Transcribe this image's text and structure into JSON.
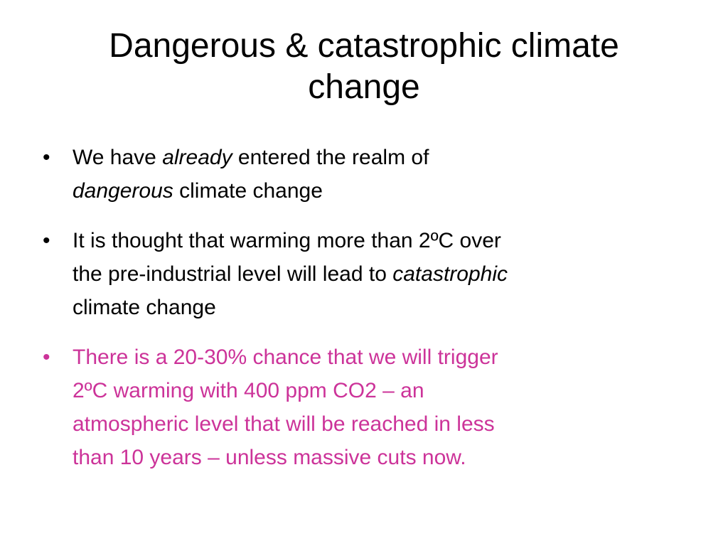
{
  "slide": {
    "title_line1": "Dangerous & catastrophic climate",
    "title_line2": "change",
    "bullet_char": "•",
    "accent_color": "#cc3399",
    "bullets": [
      {
        "t1": "We have ",
        "i1": "already",
        "t2": " entered the realm of",
        "i2": "dangerous",
        "t3": " climate change"
      },
      {
        "t1": "It is thought that warming more than 2ºC over",
        "t2": "the pre-industrial level will lead to ",
        "i1": "catastrophic",
        "t3": "climate change"
      },
      {
        "l1": "There is a 20-30% chance that we will trigger",
        "l2": "2ºC warming with 400 ppm CO2 – an",
        "l3": "atmospheric level that will be reached in less",
        "l4": "than 10 years – unless massive cuts now."
      }
    ]
  }
}
